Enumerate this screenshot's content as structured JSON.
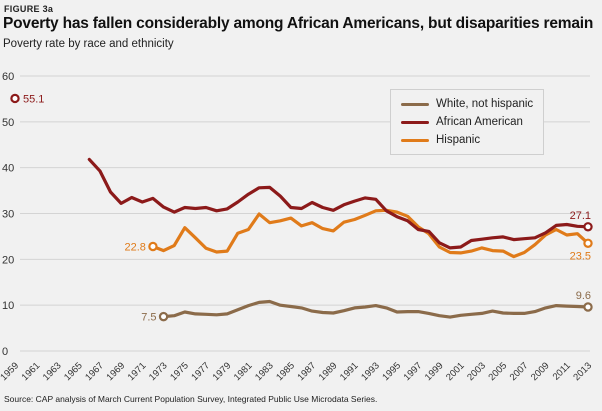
{
  "header": {
    "figure_label": "FIGURE 3a",
    "title": "Poverty has fallen considerably among African Americans, but disaparities remain",
    "subtitle": "Poverty rate by race and ethnicity"
  },
  "footer": {
    "source": "Source: CAP analysis of March Current Population Survey, Integrated Public Use Microdata Series."
  },
  "chart_data": {
    "type": "line",
    "title": "Poverty has fallen considerably among African Americans, but disaparities remain",
    "subtitle": "Poverty rate by race and ethnicity",
    "xlabel": "",
    "ylabel": "",
    "xlim": [
      1959,
      2013
    ],
    "ylim": [
      0,
      60
    ],
    "yticks": [
      0,
      10,
      20,
      30,
      40,
      50,
      60
    ],
    "xticks": [
      "1959",
      "1961",
      "1963",
      "1965",
      "1967",
      "1969",
      "1971",
      "1973",
      "1975",
      "1977",
      "1979",
      "1981",
      "1983",
      "1985",
      "1987",
      "1989",
      "1991",
      "1993",
      "1995",
      "1997",
      "1999",
      "2001",
      "2003",
      "2005",
      "2007",
      "2009",
      "2011",
      "2013"
    ],
    "grid": "horizontal",
    "legend_position": "top-right",
    "series": [
      {
        "name": "White, not hispanic",
        "color": "#8b6b4a",
        "x": [
          1973,
          1974,
          1975,
          1976,
          1977,
          1978,
          1979,
          1980,
          1981,
          1982,
          1983,
          1984,
          1985,
          1986,
          1987,
          1988,
          1989,
          1990,
          1991,
          1992,
          1993,
          1994,
          1995,
          1996,
          1997,
          1998,
          1999,
          2000,
          2001,
          2002,
          2003,
          2004,
          2005,
          2006,
          2007,
          2008,
          2009,
          2010,
          2011,
          2012,
          2013
        ],
        "y": [
          7.5,
          7.7,
          8.5,
          8.1,
          8.0,
          7.9,
          8.1,
          9.0,
          9.9,
          10.6,
          10.8,
          10.0,
          9.7,
          9.4,
          8.7,
          8.4,
          8.3,
          8.8,
          9.4,
          9.6,
          9.9,
          9.4,
          8.5,
          8.6,
          8.6,
          8.2,
          7.7,
          7.4,
          7.8,
          8.0,
          8.2,
          8.7,
          8.3,
          8.2,
          8.2,
          8.6,
          9.4,
          9.9,
          9.8,
          9.7,
          9.6
        ],
        "labels": [
          {
            "x": 1973,
            "y": 7.5,
            "text": "7.5"
          },
          {
            "x": 2013,
            "y": 9.6,
            "text": "9.6"
          }
        ]
      },
      {
        "name": "African American",
        "color": "#8c1a1a",
        "x": [
          1959,
          1966,
          1967,
          1968,
          1969,
          1970,
          1971,
          1972,
          1973,
          1974,
          1975,
          1976,
          1977,
          1978,
          1979,
          1980,
          1981,
          1982,
          1983,
          1984,
          1985,
          1986,
          1987,
          1988,
          1989,
          1990,
          1991,
          1992,
          1993,
          1994,
          1995,
          1996,
          1997,
          1998,
          1999,
          2000,
          2001,
          2002,
          2003,
          2004,
          2005,
          2006,
          2007,
          2008,
          2009,
          2010,
          2011,
          2012,
          2013
        ],
        "y": [
          55.1,
          41.8,
          39.3,
          34.7,
          32.2,
          33.5,
          32.5,
          33.3,
          31.4,
          30.3,
          31.3,
          31.1,
          31.3,
          30.6,
          31.0,
          32.5,
          34.2,
          35.6,
          35.7,
          33.8,
          31.3,
          31.1,
          32.4,
          31.3,
          30.7,
          31.9,
          32.7,
          33.4,
          33.1,
          30.6,
          29.3,
          28.4,
          26.5,
          26.1,
          23.6,
          22.5,
          22.7,
          24.1,
          24.4,
          24.7,
          24.9,
          24.3,
          24.5,
          24.7,
          25.8,
          27.4,
          27.6,
          27.2,
          27.1
        ],
        "gap_after_index": 0,
        "labels": [
          {
            "x": 1959,
            "y": 55.1,
            "text": "55.1"
          },
          {
            "x": 2013,
            "y": 27.1,
            "text": "27.1"
          }
        ]
      },
      {
        "name": "Hispanic",
        "color": "#e07b1a",
        "x": [
          1972,
          1973,
          1974,
          1975,
          1976,
          1977,
          1978,
          1979,
          1980,
          1981,
          1982,
          1983,
          1984,
          1985,
          1986,
          1987,
          1988,
          1989,
          1990,
          1991,
          1992,
          1993,
          1994,
          1995,
          1996,
          1997,
          1998,
          1999,
          2000,
          2001,
          2002,
          2003,
          2004,
          2005,
          2006,
          2007,
          2008,
          2009,
          2010,
          2011,
          2012,
          2013
        ],
        "y": [
          22.8,
          21.9,
          23.0,
          26.9,
          24.7,
          22.4,
          21.6,
          21.8,
          25.7,
          26.5,
          29.9,
          28.0,
          28.4,
          29.0,
          27.3,
          28.0,
          26.7,
          26.2,
          28.1,
          28.7,
          29.6,
          30.6,
          30.7,
          30.3,
          29.4,
          27.1,
          25.6,
          22.7,
          21.5,
          21.4,
          21.8,
          22.5,
          21.9,
          21.8,
          20.6,
          21.5,
          23.2,
          25.3,
          26.5,
          25.3,
          25.6,
          23.5
        ],
        "labels": [
          {
            "x": 1972,
            "y": 22.8,
            "text": "22.8"
          },
          {
            "x": 2013,
            "y": 23.5,
            "text": "23.5"
          }
        ]
      }
    ]
  }
}
